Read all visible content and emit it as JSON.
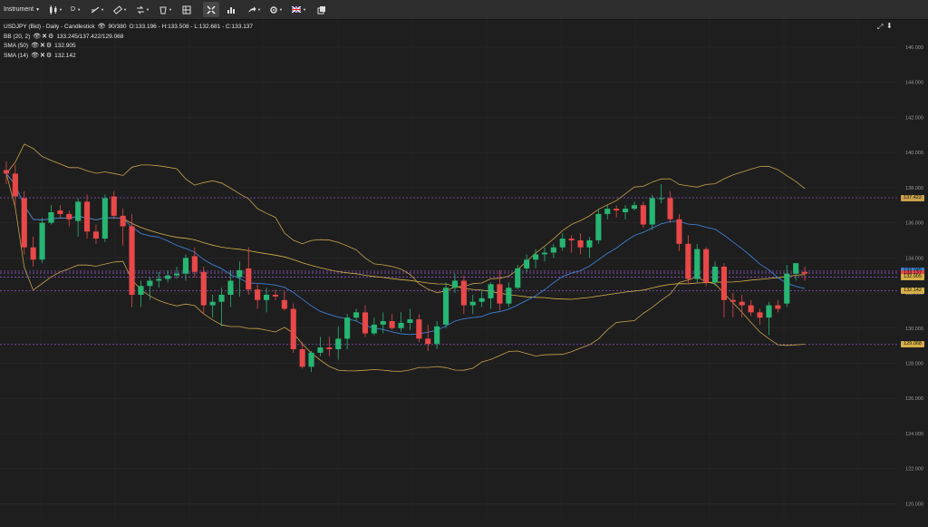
{
  "toolbar": {
    "instrument_label": "Instrument",
    "timeframe_label": "D",
    "icons": [
      "chart-type-icon",
      "timeframe-icon",
      "line-tool-icon",
      "ruler-icon",
      "compare-icon",
      "bucket-icon",
      "layout-icon",
      "crosshair-icon",
      "indicators-icon",
      "share-icon",
      "settings-icon",
      "flag-icon",
      "windows-icon"
    ]
  },
  "legend": {
    "title": "USDJPY (Bid) - Daily - Candlestick",
    "counter": "90/380",
    "ohlc": "O:133.196 - H:133.508 - L:132.681 - C:133.137",
    "indicators": [
      {
        "label": "BB (20, 2)",
        "value": "133.245/137.422/129.068"
      },
      {
        "label": "SMA (50)",
        "value": "132.905"
      },
      {
        "label": "SMA (14)",
        "value": "132.142"
      }
    ]
  },
  "colors": {
    "background": "#1e1e1e",
    "bull": "#27b573",
    "bear": "#e84848",
    "bollinger": "#c9a14a",
    "sma50": "#d6b048",
    "sma14": "#3c7fd0",
    "hline": "#a05fe0",
    "price_tag_blue": "#3c7fd0",
    "price_tag_red": "#e84848",
    "price_tag_gold": "#c9a14a"
  },
  "price_tags": [
    {
      "label": "137.422",
      "value": 137.422,
      "color": "#c9a14a"
    },
    {
      "label": "133.245",
      "value": 133.245,
      "color": "#3c7fd0"
    },
    {
      "label": "133.137",
      "value": 133.137,
      "color": "#e84848"
    },
    {
      "label": "132.905",
      "value": 132.905,
      "color": "#d6b048"
    },
    {
      "label": "132.142",
      "value": 132.142,
      "color": "#d6b048"
    },
    {
      "label": "129.068",
      "value": 129.068,
      "color": "#d6b048"
    }
  ],
  "chart_data": {
    "type": "candlestick",
    "symbol": "USDJPY",
    "y_axis": {
      "ticks": [
        "146.000",
        "144.000",
        "142.000",
        "140.000",
        "138.000",
        "136.000",
        "134.000",
        "132.000",
        "130.000",
        "128.000",
        "126.000",
        "124.000",
        "122.000",
        "120.000"
      ],
      "ylim": [
        119.5,
        147.5
      ],
      "grid": true
    },
    "horizontal_lines": [
      137.422,
      133.245,
      133.137,
      132.905,
      132.142,
      129.068
    ],
    "candles": [
      [
        139.0,
        139.5,
        138.2,
        138.8
      ],
      [
        138.8,
        139.3,
        137.0,
        137.5
      ],
      [
        137.4,
        137.8,
        134.2,
        134.6
      ],
      [
        134.6,
        135.2,
        133.5,
        133.9
      ],
      [
        133.9,
        136.3,
        133.7,
        136.0
      ],
      [
        136.0,
        137.0,
        135.9,
        136.6
      ],
      [
        136.7,
        137.0,
        136.3,
        136.5
      ],
      [
        136.5,
        136.7,
        135.8,
        136.2
      ],
      [
        136.1,
        137.4,
        135.2,
        137.2
      ],
      [
        137.2,
        137.6,
        135.1,
        135.5
      ],
      [
        135.5,
        135.9,
        134.8,
        135.1
      ],
      [
        135.1,
        137.6,
        134.9,
        137.4
      ],
      [
        137.5,
        137.8,
        136.2,
        136.4
      ],
      [
        136.4,
        136.8,
        134.7,
        135.8
      ],
      [
        135.8,
        136.5,
        131.2,
        131.9
      ],
      [
        131.9,
        132.7,
        131.2,
        132.4
      ],
      [
        132.4,
        132.9,
        131.6,
        132.7
      ],
      [
        132.7,
        133.2,
        132.3,
        132.8
      ],
      [
        132.8,
        133.3,
        132.6,
        133.0
      ],
      [
        133.0,
        133.5,
        132.8,
        133.1
      ],
      [
        133.1,
        134.2,
        132.7,
        134.0
      ],
      [
        134.1,
        134.6,
        132.9,
        133.2
      ],
      [
        133.2,
        133.5,
        130.8,
        131.3
      ],
      [
        131.3,
        131.9,
        130.6,
        131.5
      ],
      [
        131.5,
        132.3,
        130.1,
        131.9
      ],
      [
        131.9,
        133.3,
        131.2,
        132.7
      ],
      [
        132.9,
        133.8,
        131.8,
        133.3
      ],
      [
        133.4,
        134.6,
        131.9,
        132.2
      ],
      [
        132.2,
        132.5,
        131.1,
        131.6
      ],
      [
        131.6,
        132.3,
        130.9,
        131.9
      ],
      [
        131.9,
        132.2,
        131.6,
        131.8
      ],
      [
        131.6,
        132.1,
        131.0,
        131.1
      ],
      [
        131.1,
        131.4,
        128.6,
        128.8
      ],
      [
        128.8,
        129.2,
        127.7,
        127.8
      ],
      [
        127.8,
        128.7,
        127.5,
        128.6
      ],
      [
        128.6,
        129.5,
        128.4,
        128.9
      ],
      [
        128.9,
        129.5,
        128.4,
        128.8
      ],
      [
        128.8,
        130.1,
        128.2,
        129.4
      ],
      [
        129.4,
        130.8,
        128.8,
        130.6
      ],
      [
        130.6,
        131.1,
        130.4,
        130.9
      ],
      [
        130.9,
        131.3,
        129.5,
        129.7
      ],
      [
        129.7,
        130.6,
        129.6,
        130.2
      ],
      [
        130.2,
        130.9,
        129.7,
        130.4
      ],
      [
        130.4,
        130.8,
        129.9,
        130.0
      ],
      [
        130.0,
        130.9,
        129.8,
        130.3
      ],
      [
        130.3,
        131.1,
        129.9,
        130.5
      ],
      [
        130.5,
        130.8,
        129.2,
        129.4
      ],
      [
        129.4,
        130.2,
        128.7,
        129.1
      ],
      [
        129.1,
        130.4,
        128.8,
        130.1
      ],
      [
        130.2,
        132.6,
        130.0,
        132.3
      ],
      [
        132.3,
        133.1,
        132.0,
        132.7
      ],
      [
        132.7,
        133.0,
        130.8,
        131.3
      ],
      [
        131.3,
        131.9,
        130.8,
        131.5
      ],
      [
        131.5,
        132.2,
        131.2,
        131.7
      ],
      [
        131.7,
        132.6,
        131.1,
        132.5
      ],
      [
        132.5,
        133.3,
        131.0,
        131.4
      ],
      [
        131.4,
        132.6,
        131.2,
        132.3
      ],
      [
        132.3,
        133.6,
        132.2,
        133.4
      ],
      [
        133.4,
        134.2,
        133.2,
        133.9
      ],
      [
        133.9,
        134.5,
        133.4,
        134.2
      ],
      [
        134.2,
        134.6,
        133.8,
        134.3
      ],
      [
        134.3,
        134.8,
        134.0,
        134.6
      ],
      [
        134.6,
        135.4,
        134.4,
        135.1
      ],
      [
        135.1,
        135.3,
        134.3,
        135.0
      ],
      [
        135.0,
        135.4,
        134.2,
        134.6
      ],
      [
        134.6,
        135.2,
        134.0,
        135.0
      ],
      [
        135.0,
        136.8,
        134.8,
        136.5
      ],
      [
        136.5,
        137.0,
        136.2,
        136.8
      ],
      [
        136.8,
        137.0,
        136.3,
        136.7
      ],
      [
        136.6,
        137.0,
        136.2,
        136.8
      ],
      [
        136.8,
        137.2,
        136.7,
        137.0
      ],
      [
        137.0,
        137.2,
        135.7,
        135.9
      ],
      [
        135.9,
        137.6,
        135.6,
        137.4
      ],
      [
        137.4,
        138.2,
        137.1,
        137.4
      ],
      [
        137.4,
        137.8,
        136.0,
        136.2
      ],
      [
        136.2,
        136.5,
        134.4,
        134.8
      ],
      [
        134.8,
        135.3,
        132.5,
        132.8
      ],
      [
        132.8,
        134.8,
        132.6,
        134.5
      ],
      [
        134.5,
        134.6,
        132.4,
        132.6
      ],
      [
        132.6,
        133.8,
        132.4,
        133.5
      ],
      [
        133.5,
        133.7,
        130.6,
        131.6
      ],
      [
        131.6,
        132.0,
        130.6,
        131.5
      ],
      [
        131.5,
        131.9,
        130.6,
        131.3
      ],
      [
        131.3,
        131.6,
        130.7,
        130.9
      ],
      [
        130.9,
        131.1,
        130.2,
        130.6
      ],
      [
        130.6,
        131.5,
        129.6,
        131.3
      ],
      [
        131.3,
        131.6,
        130.9,
        131.1
      ],
      [
        131.4,
        133.6,
        131.2,
        133.1
      ],
      [
        133.1,
        133.6,
        132.7,
        133.7
      ],
      [
        133.2,
        133.5,
        132.7,
        133.1
      ]
    ]
  }
}
